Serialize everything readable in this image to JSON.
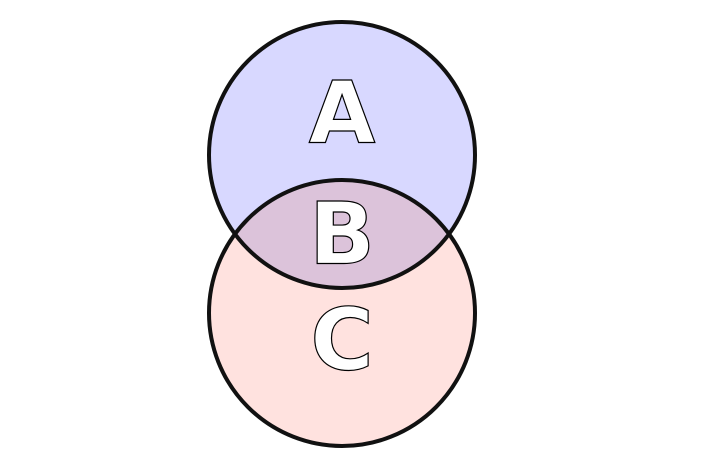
{
  "diagram": {
    "type": "venn",
    "colors": {
      "top_fill": "#d8d8ff",
      "bottom_fill": "#ffe2df",
      "overlap_fill": "#dcc3da",
      "outline": "#111111"
    },
    "labels": {
      "top_only": "A",
      "overlap": "B",
      "bottom_only": "C"
    }
  }
}
